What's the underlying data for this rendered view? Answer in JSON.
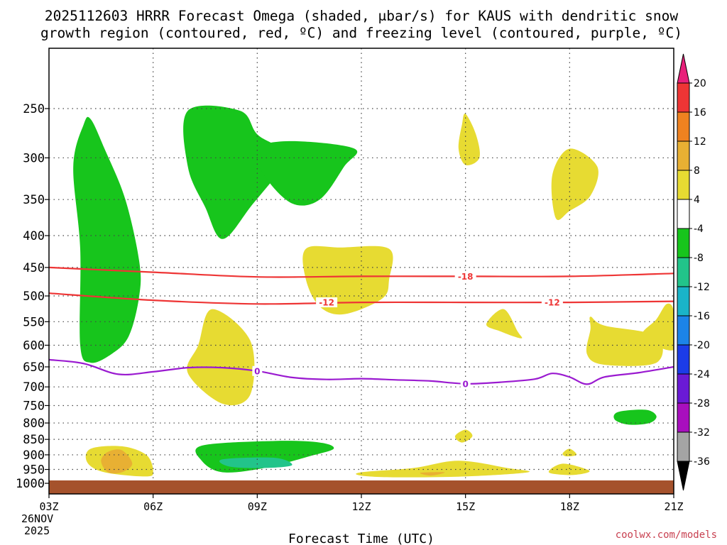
{
  "chart_data": {
    "type": "time-height cross-section",
    "title_line1": "2025112603 HRRR Forecast Omega (shaded, μbar/s) for KAUS with dendritic snow",
    "title_line2": "growth region (contoured, red, ºC) and freezing level (contoured, purple, ºC)",
    "xlabel": "Forecast Time (UTC)",
    "x_ticks": [
      "03Z",
      "06Z",
      "09Z",
      "12Z",
      "15Z",
      "18Z",
      "21Z"
    ],
    "x_hours": [
      0,
      3,
      6,
      9,
      12,
      15,
      18
    ],
    "x_date_label": [
      "26NOV",
      "2025"
    ],
    "y_ticks": [
      250,
      300,
      350,
      400,
      450,
      500,
      550,
      600,
      650,
      700,
      750,
      800,
      850,
      900,
      950,
      1000
    ],
    "y_scale": "log-pressure",
    "y_range_hpa": [
      200,
      1040
    ],
    "grid": true,
    "colorbar": {
      "labels": [
        "20",
        "16",
        "12",
        "8",
        "4",
        "-4",
        "-8",
        "-12",
        "-16",
        "-20",
        "-24",
        "-28",
        "-32",
        "-36"
      ],
      "colors": [
        "#e8207a",
        "#ee3535",
        "#ef8220",
        "#e8b033",
        "#e7db32",
        "#ffffff",
        "#17c51c",
        "#22c48a",
        "#1ab4c8",
        "#1c84e8",
        "#1c3ce8",
        "#6a1ad6",
        "#a80fbe",
        "#a4a4a4",
        "#000000"
      ]
    },
    "contours": [
      {
        "name": "-18",
        "color": "#ee3535",
        "points": [
          [
            0,
            450
          ],
          [
            3,
            458
          ],
          [
            6,
            466
          ],
          [
            9,
            465
          ],
          [
            12,
            465
          ],
          [
            15,
            465
          ],
          [
            18,
            460
          ]
        ],
        "label_at_hour": 12
      },
      {
        "name": "-12",
        "color": "#ee3535",
        "points": [
          [
            0,
            495
          ],
          [
            3,
            508
          ],
          [
            6,
            515
          ],
          [
            9,
            512
          ],
          [
            12,
            512
          ],
          [
            15,
            512
          ],
          [
            18,
            510
          ]
        ],
        "label_at_hour": [
          8,
          14.5
        ]
      },
      {
        "name": "0",
        "color": "#9a1ad0",
        "points": [
          [
            0,
            633
          ],
          [
            1,
            642
          ],
          [
            2,
            668
          ],
          [
            3,
            662
          ],
          [
            4,
            652
          ],
          [
            5,
            652
          ],
          [
            6,
            660
          ],
          [
            7,
            676
          ],
          [
            8,
            681
          ],
          [
            9,
            679
          ],
          [
            10,
            682
          ],
          [
            11,
            685
          ],
          [
            12,
            692
          ],
          [
            13,
            688
          ],
          [
            14,
            680
          ],
          [
            14.5,
            666
          ],
          [
            15,
            675
          ],
          [
            15.5,
            693
          ],
          [
            16,
            675
          ],
          [
            17,
            664
          ],
          [
            18,
            650
          ]
        ],
        "label_at_hour": [
          6,
          12
        ]
      }
    ],
    "omega_regions": [
      {
        "value": "-8",
        "color": "#17c51c",
        "points": [
          [
            1,
            265
          ],
          [
            1.2,
            260
          ],
          [
            1.6,
            290
          ],
          [
            2.2,
            350
          ],
          [
            2.6,
            440
          ],
          [
            2.6,
            500
          ],
          [
            2.3,
            580
          ],
          [
            1.8,
            620
          ],
          [
            1.2,
            640
          ],
          [
            0.9,
            600
          ],
          [
            0.9,
            420
          ],
          [
            0.7,
            310
          ]
        ]
      },
      {
        "value": "-8",
        "color": "#17c51c",
        "points": [
          [
            4,
            252
          ],
          [
            5.5,
            252
          ],
          [
            6,
            275
          ],
          [
            6.8,
            300
          ],
          [
            5.8,
            360
          ],
          [
            5,
            405
          ],
          [
            4.5,
            360
          ],
          [
            4,
            310
          ]
        ]
      },
      {
        "value": "-8",
        "color": "#17c51c",
        "points": [
          [
            6,
            290
          ],
          [
            7,
            282
          ],
          [
            8.8,
            290
          ],
          [
            8.5,
            310
          ],
          [
            7.8,
            350
          ],
          [
            7,
            355
          ],
          [
            6.2,
            320
          ]
        ]
      },
      {
        "value": "-8",
        "color": "#17c51c",
        "points": [
          [
            16.4,
            768
          ],
          [
            17.2,
            762
          ],
          [
            17.5,
            780
          ],
          [
            17.3,
            800
          ],
          [
            16.7,
            805
          ],
          [
            16.3,
            790
          ]
        ]
      },
      {
        "value": "-8",
        "color": "#17c51c",
        "points": [
          [
            4.4,
            870
          ],
          [
            6.5,
            855
          ],
          [
            7.8,
            860
          ],
          [
            8.2,
            880
          ],
          [
            7.5,
            905
          ],
          [
            6.2,
            945
          ],
          [
            5,
            960
          ],
          [
            4.4,
            920
          ]
        ]
      },
      {
        "value": "-12",
        "color": "#22c48a",
        "points": [
          [
            5,
            915
          ],
          [
            6.5,
            910
          ],
          [
            7,
            935
          ],
          [
            6.2,
            945
          ],
          [
            5.2,
            940
          ]
        ]
      },
      {
        "value": "4",
        "color": "#e7db32",
        "points": [
          [
            7.4,
            420
          ],
          [
            8.4,
            418
          ],
          [
            9.8,
            420
          ],
          [
            9.8,
            470
          ],
          [
            9.6,
            505
          ],
          [
            8.5,
            535
          ],
          [
            7.8,
            520
          ],
          [
            7.4,
            470
          ]
        ]
      },
      {
        "value": "4",
        "color": "#e7db32",
        "points": [
          [
            4.7,
            525
          ],
          [
            5.8,
            590
          ],
          [
            5.8,
            720
          ],
          [
            5,
            745
          ],
          [
            4,
            665
          ],
          [
            4.3,
            600
          ]
        ]
      },
      {
        "value": "4",
        "color": "#e7db32",
        "points": [
          [
            12,
            255
          ],
          [
            12.3,
            275
          ],
          [
            12.4,
            300
          ],
          [
            12,
            308
          ],
          [
            11.8,
            290
          ],
          [
            11.9,
            265
          ]
        ]
      },
      {
        "value": "4",
        "color": "#e7db32",
        "points": [
          [
            15,
            290
          ],
          [
            15.8,
            310
          ],
          [
            15.6,
            345
          ],
          [
            15,
            365
          ],
          [
            14.6,
            375
          ],
          [
            14.5,
            320
          ]
        ]
      },
      {
        "value": "4",
        "color": "#e7db32",
        "points": [
          [
            13.1,
            525
          ],
          [
            13.5,
            570
          ],
          [
            13.6,
            585
          ],
          [
            13.0,
            570
          ],
          [
            12.6,
            555
          ]
        ]
      },
      {
        "value": "4",
        "color": "#e7db32",
        "points": [
          [
            15.6,
            540
          ],
          [
            16,
            558
          ],
          [
            17.5,
            580
          ],
          [
            17.5,
            640
          ],
          [
            16,
            645
          ],
          [
            15.5,
            620
          ],
          [
            15.6,
            565
          ]
        ]
      },
      {
        "value": "4",
        "color": "#e7db32",
        "points": [
          [
            17.8,
            515
          ],
          [
            18.0,
            530
          ],
          [
            18,
            610
          ],
          [
            17.1,
            580
          ],
          [
            17.5,
            545
          ]
        ]
      },
      {
        "value": "4",
        "color": "#e7db32",
        "points": [
          [
            1.2,
            880
          ],
          [
            2.1,
            872
          ],
          [
            2.8,
            900
          ],
          [
            3,
            955
          ],
          [
            2.8,
            975
          ],
          [
            1.6,
            960
          ],
          [
            1.1,
            925
          ]
        ]
      },
      {
        "value": "4",
        "color": "#e7db32",
        "points": [
          [
            12.0,
            820
          ],
          [
            12.2,
            840
          ],
          [
            11.9,
            860
          ],
          [
            11.7,
            840
          ]
        ]
      },
      {
        "value": "4",
        "color": "#e7db32",
        "points": [
          [
            9,
            960
          ],
          [
            10.5,
            945
          ],
          [
            11.8,
            920
          ],
          [
            13.2,
            945
          ],
          [
            13.8,
            960
          ],
          [
            12,
            975
          ],
          [
            10,
            978
          ],
          [
            9,
            972
          ]
        ]
      },
      {
        "value": "4",
        "color": "#e7db32",
        "points": [
          [
            14.8,
            930
          ],
          [
            15.5,
            950
          ],
          [
            15.5,
            962
          ],
          [
            15,
            970
          ],
          [
            14.4,
            960
          ]
        ]
      },
      {
        "value": "4",
        "color": "#e7db32",
        "points": [
          [
            15,
            880
          ],
          [
            15.2,
            900
          ],
          [
            14.9,
            905
          ],
          [
            14.8,
            895
          ]
        ]
      },
      {
        "value": "8",
        "color": "#e8b033",
        "points": [
          [
            1.7,
            890
          ],
          [
            2.1,
            885
          ],
          [
            2.4,
            930
          ],
          [
            2.1,
            960
          ],
          [
            1.7,
            960
          ],
          [
            1.5,
            920
          ]
        ]
      },
      {
        "value": "8",
        "color": "#e8b033",
        "points": [
          [
            10.7,
            962
          ],
          [
            11.4,
            960
          ],
          [
            11.0,
            972
          ]
        ]
      }
    ],
    "credit": "coolwx.com/models"
  }
}
